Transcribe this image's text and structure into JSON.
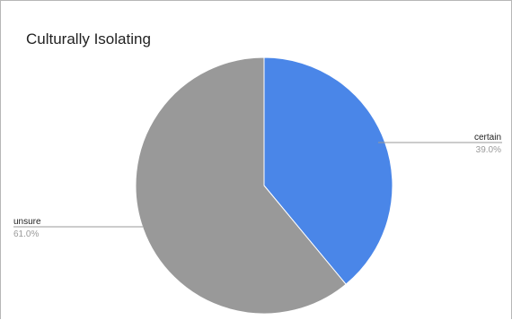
{
  "chart_data": {
    "type": "pie",
    "title": "Culturally Isolating",
    "slices": [
      {
        "label": "certain",
        "value": 39.0,
        "percent_label": "39.0%",
        "color": "#4a86e8"
      },
      {
        "label": "unsure",
        "value": 61.0,
        "percent_label": "61.0%",
        "color": "#999999"
      }
    ],
    "legend": "none",
    "label_style": "leader-lines"
  }
}
